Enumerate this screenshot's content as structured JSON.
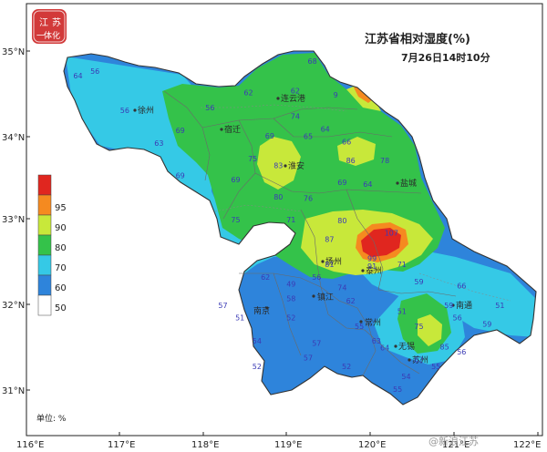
{
  "title": "江苏省相对湿度(%)",
  "subtitle": "7月26日14时10分",
  "logo": {
    "text": "一体化江苏",
    "color": "#d23a3a"
  },
  "axes": {
    "x_ticks": [
      "116°E",
      "117°E",
      "118°E",
      "119°E",
      "120°E",
      "121°E",
      "122°E"
    ],
    "y_ticks": [
      "35°N",
      "34°N",
      "33°N",
      "32°N",
      "31°N"
    ]
  },
  "legend": {
    "unit_label": "单位: %",
    "bins": [
      {
        "label": "95",
        "color": "#e0261f"
      },
      {
        "label": "90",
        "color": "#f58a20"
      },
      {
        "label": "80",
        "color": "#c8e83a"
      },
      {
        "label": "70",
        "color": "#34c24a"
      },
      {
        "label": "60",
        "color": "#35c9e6"
      },
      {
        "label": "50",
        "color": "#2e84db"
      },
      {
        "label": "",
        "color": "#ffffff"
      }
    ]
  },
  "cities": [
    "徐州",
    "连云港",
    "宿迁",
    "淮安",
    "盐城",
    "扬州",
    "泰州",
    "南京",
    "镇江",
    "常州",
    "南通",
    "无锡",
    "苏州"
  ],
  "station_values": [
    {
      "v": "64",
      "lon": 116.55,
      "lat": 34.68
    },
    {
      "v": "56",
      "lon": 116.75,
      "lat": 34.73
    },
    {
      "v": "56",
      "lon": 117.1,
      "lat": 34.27
    },
    {
      "v": "56",
      "lon": 118.1,
      "lat": 34.3
    },
    {
      "v": "63",
      "lon": 117.5,
      "lat": 33.88
    },
    {
      "v": "69",
      "lon": 117.75,
      "lat": 34.03
    },
    {
      "v": "69",
      "lon": 117.75,
      "lat": 33.5
    },
    {
      "v": "62",
      "lon": 118.55,
      "lat": 34.48
    },
    {
      "v": "68",
      "lon": 119.3,
      "lat": 34.85
    },
    {
      "v": "62",
      "lon": 119.1,
      "lat": 34.5
    },
    {
      "v": "9",
      "lon": 119.6,
      "lat": 34.45
    },
    {
      "v": "74",
      "lon": 119.1,
      "lat": 34.2
    },
    {
      "v": "64",
      "lon": 119.45,
      "lat": 34.05
    },
    {
      "v": "65",
      "lon": 119.25,
      "lat": 33.96
    },
    {
      "v": "69",
      "lon": 118.8,
      "lat": 33.97
    },
    {
      "v": "66",
      "lon": 119.7,
      "lat": 33.9
    },
    {
      "v": "75",
      "lon": 118.6,
      "lat": 33.7
    },
    {
      "v": "83",
      "lon": 118.9,
      "lat": 33.62
    },
    {
      "v": "86",
      "lon": 119.75,
      "lat": 33.68
    },
    {
      "v": "78",
      "lon": 120.15,
      "lat": 33.68
    },
    {
      "v": "69",
      "lon": 118.4,
      "lat": 33.45
    },
    {
      "v": "80",
      "lon": 118.9,
      "lat": 33.25
    },
    {
      "v": "69",
      "lon": 119.65,
      "lat": 33.42
    },
    {
      "v": "64",
      "lon": 119.95,
      "lat": 33.4
    },
    {
      "v": "76",
      "lon": 119.25,
      "lat": 33.23
    },
    {
      "v": "75",
      "lon": 118.4,
      "lat": 32.98
    },
    {
      "v": "71",
      "lon": 119.05,
      "lat": 32.98
    },
    {
      "v": "80",
      "lon": 119.65,
      "lat": 32.97
    },
    {
      "v": "87",
      "lon": 119.5,
      "lat": 32.75
    },
    {
      "v": "107",
      "lon": 120.2,
      "lat": 32.82
    },
    {
      "v": "99",
      "lon": 120.0,
      "lat": 32.52
    },
    {
      "v": "91",
      "lon": 120.0,
      "lat": 32.43
    },
    {
      "v": "71",
      "lon": 120.35,
      "lat": 32.45
    },
    {
      "v": "81",
      "lon": 119.5,
      "lat": 32.45
    },
    {
      "v": "59",
      "lon": 120.55,
      "lat": 32.25
    },
    {
      "v": "62",
      "lon": 118.75,
      "lat": 32.3
    },
    {
      "v": "49",
      "lon": 119.05,
      "lat": 32.22
    },
    {
      "v": "56",
      "lon": 119.35,
      "lat": 32.3
    },
    {
      "v": "74",
      "lon": 119.65,
      "lat": 32.18
    },
    {
      "v": "66",
      "lon": 121.05,
      "lat": 32.2
    },
    {
      "v": "57",
      "lon": 118.25,
      "lat": 31.97
    },
    {
      "v": "51",
      "lon": 118.45,
      "lat": 31.82
    },
    {
      "v": "58",
      "lon": 119.05,
      "lat": 32.05
    },
    {
      "v": "52",
      "lon": 119.05,
      "lat": 31.82
    },
    {
      "v": "62",
      "lon": 119.75,
      "lat": 32.02
    },
    {
      "v": "51",
      "lon": 120.35,
      "lat": 31.9
    },
    {
      "v": "59",
      "lon": 120.9,
      "lat": 31.97
    },
    {
      "v": "51",
      "lon": 121.5,
      "lat": 31.97
    },
    {
      "v": "55",
      "lon": 119.85,
      "lat": 31.72
    },
    {
      "v": "75",
      "lon": 120.55,
      "lat": 31.72
    },
    {
      "v": "63",
      "lon": 120.05,
      "lat": 31.55
    },
    {
      "v": "85",
      "lon": 120.85,
      "lat": 31.48
    },
    {
      "v": "56",
      "lon": 121.0,
      "lat": 31.82
    },
    {
      "v": "59",
      "lon": 121.35,
      "lat": 31.75
    },
    {
      "v": "54",
      "lon": 118.65,
      "lat": 31.55
    },
    {
      "v": "57",
      "lon": 119.35,
      "lat": 31.52
    },
    {
      "v": "64",
      "lon": 120.15,
      "lat": 31.47
    },
    {
      "v": "52",
      "lon": 118.65,
      "lat": 31.25
    },
    {
      "v": "57",
      "lon": 119.25,
      "lat": 31.35
    },
    {
      "v": "52",
      "lon": 119.7,
      "lat": 31.25
    },
    {
      "v": "62",
      "lon": 120.55,
      "lat": 31.33
    },
    {
      "v": "56",
      "lon": 121.05,
      "lat": 31.42
    },
    {
      "v": "54",
      "lon": 120.4,
      "lat": 31.13
    },
    {
      "v": "55",
      "lon": 120.3,
      "lat": 30.98
    },
    {
      "v": "55",
      "lon": 120.75,
      "lat": 31.25
    }
  ],
  "watermark": "@新浪江苏"
}
